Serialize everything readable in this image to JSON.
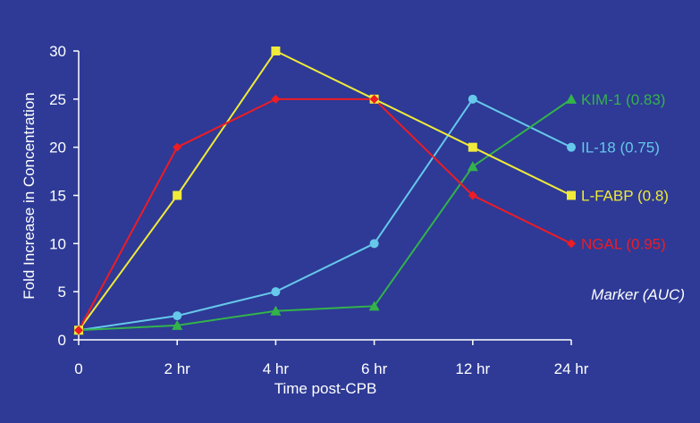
{
  "chart_data": {
    "type": "line",
    "xlabel": "Time post-CPB",
    "ylabel": "Fold Increase in Concentration",
    "categories": [
      "0",
      "2 hr",
      "4 hr",
      "6 hr",
      "12 hr",
      "24 hr"
    ],
    "ylim": [
      0,
      30
    ],
    "yticks": [
      0,
      5,
      10,
      15,
      20,
      25,
      30
    ],
    "grid": false,
    "legend_title": "Marker (AUC)",
    "legend_placement": "right, inline labels at line ends",
    "series": [
      {
        "name": "KIM-1 (0.83)",
        "color": "#33b34a",
        "marker": "triangle",
        "values": [
          1,
          1.5,
          3,
          3.5,
          18,
          25
        ]
      },
      {
        "name": "IL-18 (0.75)",
        "color": "#66c8ea",
        "marker": "circle",
        "values": [
          1,
          2.5,
          5,
          10,
          25,
          20
        ]
      },
      {
        "name": "L-FABP (0.8)",
        "color": "#f0ea3a",
        "marker": "square",
        "values": [
          1,
          15,
          30,
          25,
          20,
          15
        ]
      },
      {
        "name": "NGAL (0.95)",
        "color": "#ee1c24",
        "marker": "diamond",
        "values": [
          1,
          20,
          25,
          25,
          15,
          10
        ]
      }
    ]
  }
}
